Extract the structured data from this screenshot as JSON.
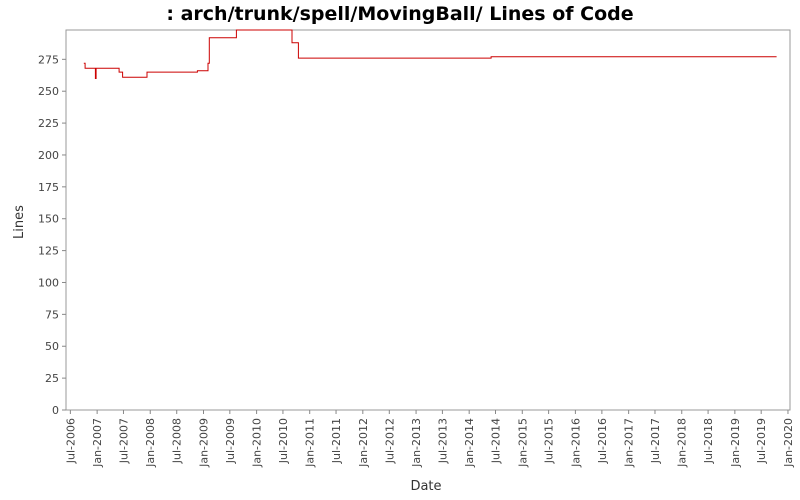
{
  "chart_data": {
    "type": "line",
    "title": ": arch/trunk/spell/MovingBall/ Lines of Code",
    "xlabel": "Date",
    "ylabel": "Lines",
    "x_type": "date",
    "xlim": [
      "2006-06-01",
      "2020-01-15"
    ],
    "ylim": [
      0,
      298
    ],
    "y_ticks": [
      0,
      25,
      50,
      75,
      100,
      125,
      150,
      175,
      200,
      225,
      250,
      275
    ],
    "x_ticks": [
      {
        "date": "2006-07-01",
        "label": "Jul-2006"
      },
      {
        "date": "2007-01-01",
        "label": "Jan-2007"
      },
      {
        "date": "2007-07-01",
        "label": "Jul-2007"
      },
      {
        "date": "2008-01-01",
        "label": "Jan-2008"
      },
      {
        "date": "2008-07-01",
        "label": "Jul-2008"
      },
      {
        "date": "2009-01-01",
        "label": "Jan-2009"
      },
      {
        "date": "2009-07-01",
        "label": "Jul-2009"
      },
      {
        "date": "2010-01-01",
        "label": "Jan-2010"
      },
      {
        "date": "2010-07-01",
        "label": "Jul-2010"
      },
      {
        "date": "2011-01-01",
        "label": "Jan-2011"
      },
      {
        "date": "2011-07-01",
        "label": "Jul-2011"
      },
      {
        "date": "2012-01-01",
        "label": "Jan-2012"
      },
      {
        "date": "2012-07-01",
        "label": "Jul-2012"
      },
      {
        "date": "2013-01-01",
        "label": "Jan-2013"
      },
      {
        "date": "2013-07-01",
        "label": "Jul-2013"
      },
      {
        "date": "2014-01-01",
        "label": "Jan-2014"
      },
      {
        "date": "2014-07-01",
        "label": "Jul-2014"
      },
      {
        "date": "2015-01-01",
        "label": "Jan-2015"
      },
      {
        "date": "2015-07-01",
        "label": "Jul-2015"
      },
      {
        "date": "2016-01-01",
        "label": "Jan-2016"
      },
      {
        "date": "2016-07-01",
        "label": "Jul-2016"
      },
      {
        "date": "2017-01-01",
        "label": "Jan-2017"
      },
      {
        "date": "2017-07-01",
        "label": "Jul-2017"
      },
      {
        "date": "2018-01-01",
        "label": "Jan-2018"
      },
      {
        "date": "2018-07-01",
        "label": "Jul-2018"
      },
      {
        "date": "2019-01-01",
        "label": "Jan-2019"
      },
      {
        "date": "2019-07-01",
        "label": "Jul-2019"
      },
      {
        "date": "2020-01-01",
        "label": "Jan-2020"
      }
    ],
    "grid": false,
    "legend": "none",
    "series": [
      {
        "color": "#cc0000",
        "step": true,
        "points": [
          {
            "x": "2006-10-01",
            "y": 272
          },
          {
            "x": "2006-10-10",
            "y": 268
          },
          {
            "x": "2006-12-20",
            "y": 260
          },
          {
            "x": "2006-12-25",
            "y": 268
          },
          {
            "x": "2007-06-01",
            "y": 265
          },
          {
            "x": "2007-06-25",
            "y": 261
          },
          {
            "x": "2007-12-10",
            "y": 265
          },
          {
            "x": "2008-11-20",
            "y": 266
          },
          {
            "x": "2009-02-01",
            "y": 272
          },
          {
            "x": "2009-02-10",
            "y": 292
          },
          {
            "x": "2009-08-15",
            "y": 298
          },
          {
            "x": "2010-09-01",
            "y": 288
          },
          {
            "x": "2010-10-15",
            "y": 276
          },
          {
            "x": "2014-06-01",
            "y": 277
          },
          {
            "x": "2019-10-15",
            "y": 277
          }
        ]
      }
    ]
  }
}
